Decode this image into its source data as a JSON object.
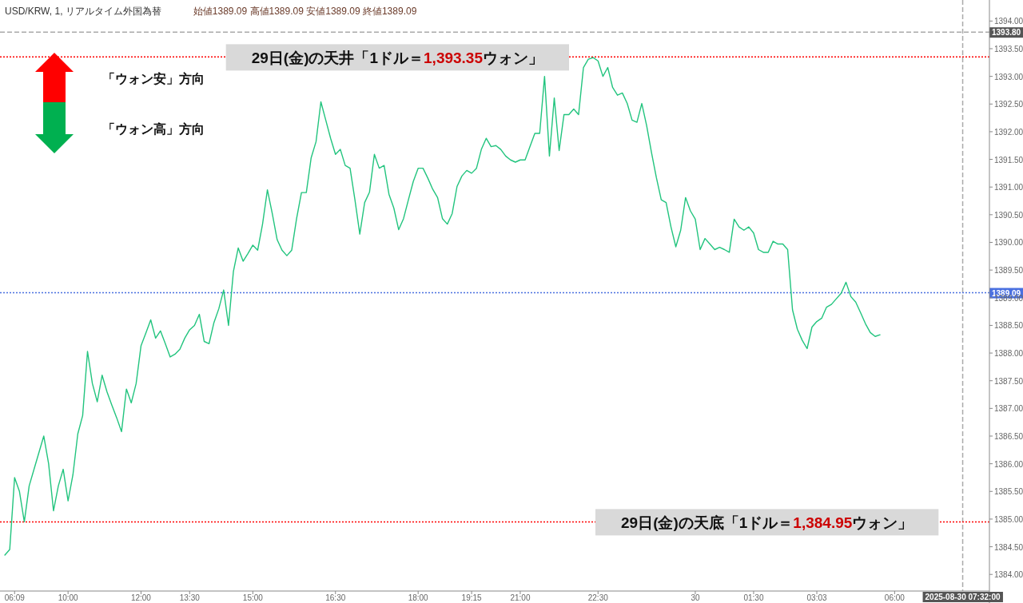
{
  "chart_data": {
    "type": "line",
    "title": "USD/KRW, 1, リアルタイム外国為替",
    "subtitle": "始値1389.09 高値1389.09 安値1389.09 終値1389.09",
    "categories": [
      null,
      null,
      "06:09",
      null,
      null,
      null,
      null,
      null,
      null,
      null,
      null,
      null,
      null,
      "10:00",
      null,
      null,
      null,
      null,
      null,
      null,
      null,
      null,
      null,
      null,
      null,
      null,
      null,
      null,
      "12:00",
      null,
      null,
      null,
      null,
      null,
      null,
      null,
      null,
      null,
      "13:30",
      null,
      null,
      null,
      null,
      null,
      null,
      null,
      null,
      null,
      null,
      null,
      null,
      "15:00",
      null,
      null,
      null,
      null,
      null,
      null,
      null,
      null,
      null,
      null,
      null,
      null,
      null,
      null,
      null,
      null,
      "16:30",
      null,
      null,
      null,
      null,
      null,
      null,
      null,
      null,
      null,
      null,
      null,
      null,
      null,
      null,
      null,
      null,
      "18:00",
      null,
      null,
      null,
      null,
      null,
      null,
      null,
      null,
      null,
      null,
      "19:15",
      null,
      null,
      null,
      null,
      null,
      null,
      null,
      null,
      null,
      "21:00",
      null,
      null,
      null,
      null,
      null,
      null,
      null,
      null,
      null,
      null,
      null,
      null,
      null,
      null,
      null,
      "22:30",
      null,
      null,
      null,
      null,
      null,
      null,
      null,
      null,
      null,
      null,
      null,
      null,
      null,
      null,
      null,
      null,
      null,
      null,
      null,
      "30",
      null,
      null,
      null,
      null,
      null,
      null,
      null,
      null,
      null,
      null,
      null,
      "01:30",
      null,
      null,
      null,
      null,
      null,
      null,
      null,
      null,
      null,
      null,
      null,
      null,
      "03:03",
      null,
      null,
      null,
      null,
      null,
      null,
      null,
      null,
      null,
      null,
      null,
      null,
      null,
      null,
      null,
      "06:00",
      null,
      null,
      null,
      null,
      null,
      null,
      null,
      null,
      null,
      null,
      null,
      null,
      null,
      "2025-08-30 07:32:00",
      null,
      null,
      null,
      null,
      null
    ],
    "values": [
      1384.35,
      1384.45,
      1385.75,
      1385.5,
      1384.95,
      1385.6,
      1385.9,
      1386.2,
      1386.5,
      1386.0,
      1385.15,
      1385.6,
      1385.9,
      1385.33,
      1385.8,
      1386.54,
      1386.87,
      1388.03,
      1387.45,
      1387.12,
      1387.6,
      1387.3,
      1387.06,
      1386.83,
      1386.58,
      1387.35,
      1387.1,
      1387.45,
      1388.13,
      1388.36,
      1388.6,
      1388.27,
      1388.4,
      1388.17,
      1387.93,
      1387.98,
      1388.07,
      1388.27,
      1388.42,
      1388.5,
      1388.7,
      1388.21,
      1388.17,
      1388.55,
      1388.8,
      1389.14,
      1388.5,
      1389.47,
      1389.9,
      1389.66,
      1389.8,
      1389.95,
      1389.86,
      1390.33,
      1390.95,
      1390.52,
      1390.05,
      1389.86,
      1389.76,
      1389.86,
      1390.43,
      1390.9,
      1390.9,
      1391.53,
      1391.82,
      1392.54,
      1392.21,
      1391.88,
      1391.59,
      1391.68,
      1391.39,
      1391.34,
      1390.77,
      1390.15,
      1390.72,
      1390.91,
      1391.59,
      1391.34,
      1391.39,
      1390.87,
      1390.62,
      1390.23,
      1390.43,
      1390.77,
      1391.1,
      1391.34,
      1391.34,
      1391.16,
      1390.96,
      1390.81,
      1390.43,
      1390.33,
      1390.52,
      1391.01,
      1391.2,
      1391.3,
      1391.25,
      1391.34,
      1391.68,
      1391.88,
      1391.73,
      1391.75,
      1391.68,
      1391.56,
      1391.49,
      1391.45,
      1391.49,
      1391.49,
      1391.73,
      1391.97,
      1391.97,
      1393.0,
      1391.56,
      1392.61,
      1391.66,
      1392.31,
      1392.31,
      1392.41,
      1392.31,
      1393.16,
      1393.31,
      1393.34,
      1393.28,
      1393.0,
      1393.16,
      1392.8,
      1392.66,
      1392.7,
      1392.51,
      1392.21,
      1392.17,
      1392.51,
      1392.11,
      1391.62,
      1391.17,
      1390.77,
      1390.72,
      1390.28,
      1389.92,
      1390.22,
      1390.81,
      1390.57,
      1390.42,
      1389.87,
      1390.07,
      1389.97,
      1389.87,
      1389.91,
      1389.87,
      1389.82,
      1390.42,
      1390.28,
      1390.22,
      1390.28,
      1390.17,
      1389.87,
      1389.82,
      1389.82,
      1390.02,
      1389.97,
      1389.97,
      1389.87,
      1388.78,
      1388.43,
      1388.23,
      1388.08,
      1388.47,
      1388.57,
      1388.63,
      1388.83,
      1388.88,
      1388.98,
      1389.08,
      1389.28,
      1389.02,
      1388.92,
      1388.73,
      1388.53,
      1388.37,
      1388.3,
      1388.33,
      null,
      null,
      null,
      null,
      null,
      null,
      null,
      null,
      null,
      null,
      null,
      null,
      null,
      null,
      null,
      null,
      null,
      null,
      null,
      null,
      null,
      null
    ],
    "color": "#22c47e",
    "ylim": [
      1383.7,
      1394.38
    ],
    "yticks": [
      {
        "value": 1384,
        "label": "1384.00"
      },
      {
        "value": 1384.5,
        "label": "1384.50"
      },
      {
        "value": 1385,
        "label": "1385.00"
      },
      {
        "value": 1385.5,
        "label": "1385.50"
      },
      {
        "value": 1386,
        "label": "1386.00"
      },
      {
        "value": 1386.5,
        "label": "1386.50"
      },
      {
        "value": 1387,
        "label": "1387.00"
      },
      {
        "value": 1387.5,
        "label": "1387.50"
      },
      {
        "value": 1388,
        "label": "1388.00"
      },
      {
        "value": 1388.5,
        "label": "1388.50"
      },
      {
        "value": 1389,
        "label": "1389.00"
      },
      {
        "value": 1389.5,
        "label": "1389.50"
      },
      {
        "value": 1390,
        "label": "1390.00"
      },
      {
        "value": 1390.5,
        "label": "1390.50"
      },
      {
        "value": 1391,
        "label": "1391.00"
      },
      {
        "value": 1391.5,
        "label": "1391.50"
      },
      {
        "value": 1392,
        "label": "1392.00"
      },
      {
        "value": 1392.5,
        "label": "1392.50"
      },
      {
        "value": 1393,
        "label": "1393.00"
      },
      {
        "value": 1393.5,
        "label": "1393.50"
      },
      {
        "value": 1394,
        "label": "1394.00"
      }
    ],
    "ref_lines": [
      {
        "axis": "y",
        "value": 1393.35,
        "label": "29日(金)の天井「1ドル＝**1,393.35**ウォン」",
        "color": "#ff0000",
        "line_style": "dotted"
      },
      {
        "axis": "y",
        "value": 1384.95,
        "label": "29日(金)の天底「1ドル＝**1,384.95**ウォン」",
        "color": "#ff0000",
        "line_style": "dotted"
      },
      {
        "axis": "y",
        "value": 1393.8,
        "label": "1393.80",
        "color": "#aaaaaa",
        "line_style": "dashed"
      },
      {
        "axis": "y",
        "value": 1389.09,
        "label": "1389.09",
        "color": "#4a70e0",
        "line_style": "dotted"
      }
    ],
    "annotations": [
      "「ウォン安」方向",
      "「ウォン高」方向"
    ],
    "grid": false,
    "marker": "none",
    "line_style": "solid"
  }
}
